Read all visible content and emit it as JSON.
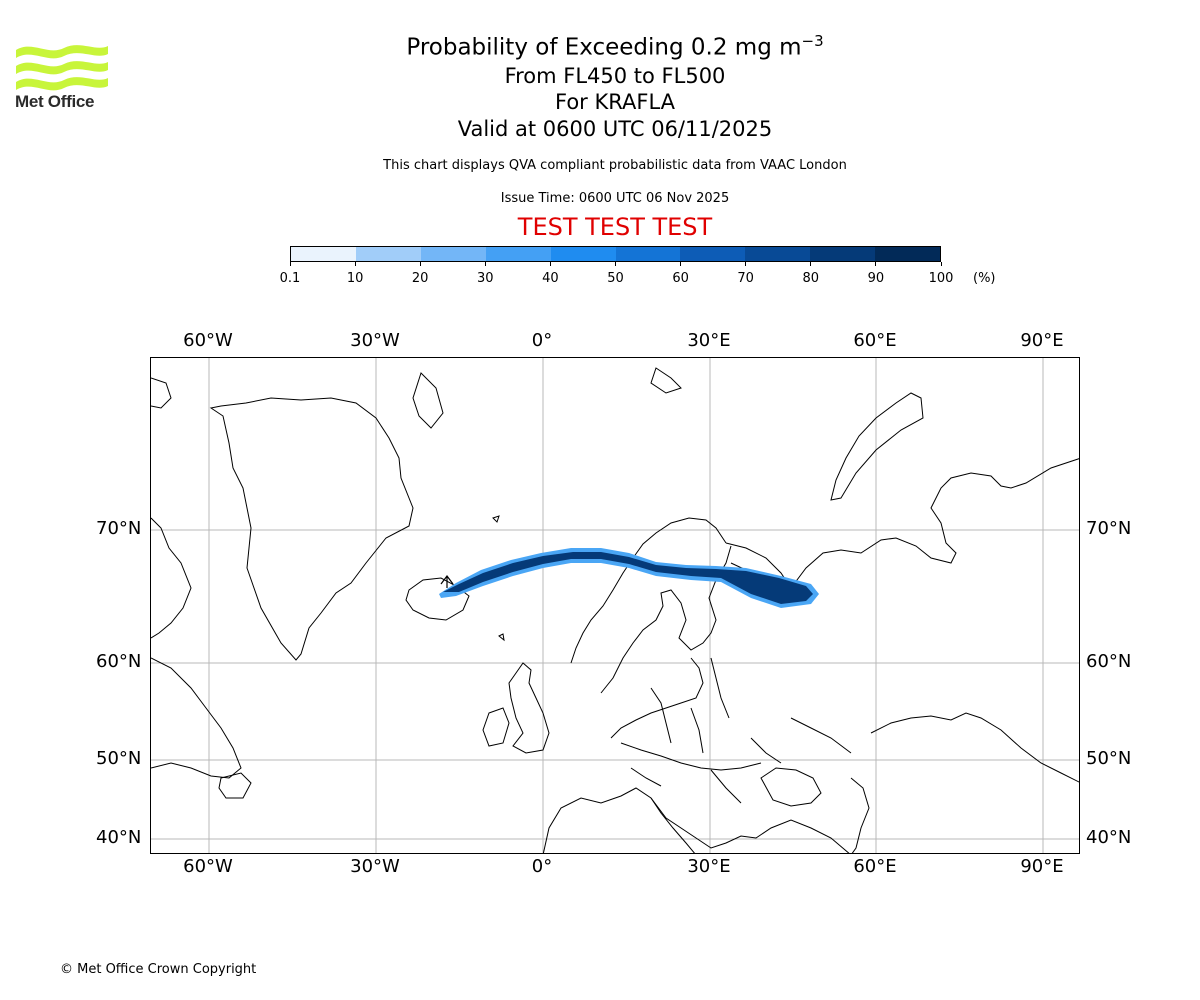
{
  "header": {
    "logo_text": "Met Office",
    "title_prefix": "Probability of Exceeding 0.2 mg m",
    "title_exponent": "−3",
    "level_line": "From FL450 to FL500",
    "volcano_line": "For KRAFLA",
    "valid_line": "Valid at 0600 UTC 06/11/2025",
    "description": "This chart displays QVA compliant probabilistic data from VAAC London",
    "issue_time": "Issue Time: 0600 UTC 06 Nov 2025",
    "test_banner": "TEST TEST TEST"
  },
  "colorbar": {
    "ticks": [
      "0.1",
      "10",
      "20",
      "30",
      "40",
      "50",
      "60",
      "70",
      "80",
      "90",
      "100"
    ],
    "unit": "(%)",
    "colors": [
      "#eaf3fd",
      "#c7e1fb",
      "#a1cdf9",
      "#73b6f7",
      "#44a0f4",
      "#1f8cf0",
      "#1474d6",
      "#0d5cb6",
      "#084a96",
      "#053a78",
      "#022a58"
    ]
  },
  "map": {
    "lon_labels": [
      "60°W",
      "30°W",
      "0°",
      "30°E",
      "60°E",
      "90°E"
    ],
    "lat_labels": [
      "70°N",
      "60°N",
      "50°N",
      "40°N"
    ],
    "plume_color": "#053a78",
    "plume_edge_color": "#4aa6f5"
  },
  "footer": {
    "copyright": "© Met Office Crown Copyright"
  }
}
